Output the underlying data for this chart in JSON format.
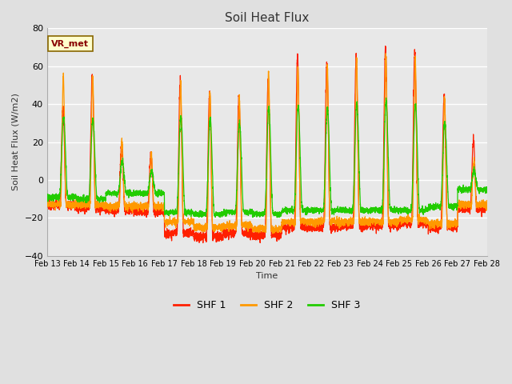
{
  "title": "Soil Heat Flux",
  "ylabel": "Soil Heat Flux (W/m2)",
  "xlabel": "Time",
  "ylim": [
    -40,
    80
  ],
  "yticks": [
    -40,
    -20,
    0,
    20,
    40,
    60,
    80
  ],
  "line_colors": {
    "SHF 1": "#ff2000",
    "SHF 2": "#ff9900",
    "SHF 3": "#22cc00"
  },
  "legend_label": "VR_met",
  "start_day": 13,
  "end_day": 28,
  "n_days": 15,
  "points_per_day": 288,
  "shf1_peaks": [
    38,
    55,
    18,
    13,
    52,
    46,
    43,
    53,
    65,
    62,
    65,
    70,
    68,
    45,
    20
  ],
  "shf2_peaks": [
    55,
    55,
    21,
    14,
    51,
    47,
    43,
    57,
    59,
    60,
    64,
    66,
    65,
    43,
    10
  ],
  "shf3_peaks": [
    33,
    32,
    10,
    5,
    34,
    32,
    30,
    38,
    39,
    38,
    40,
    41,
    40,
    30,
    5
  ],
  "shf1_troughs": [
    -13,
    -15,
    -16,
    -17,
    -28,
    -30,
    -28,
    -29,
    -25,
    -25,
    -24,
    -24,
    -23,
    -25,
    -15
  ],
  "shf2_troughs": [
    -13,
    -13,
    -14,
    -14,
    -22,
    -25,
    -24,
    -26,
    -22,
    -22,
    -22,
    -22,
    -21,
    -23,
    -13
  ],
  "shf3_troughs": [
    -9,
    -10,
    -7,
    -7,
    -17,
    -18,
    -17,
    -18,
    -16,
    -16,
    -16,
    -16,
    -16,
    -14,
    -5
  ],
  "background_color": "#e0e0e0",
  "plot_bg_inner": "#e8e8e8",
  "plot_bg_outer": "#d0d0d0",
  "grid_color": "#ffffff",
  "annotation_box_color": "#ffffcc",
  "annotation_box_edge": "#886600"
}
